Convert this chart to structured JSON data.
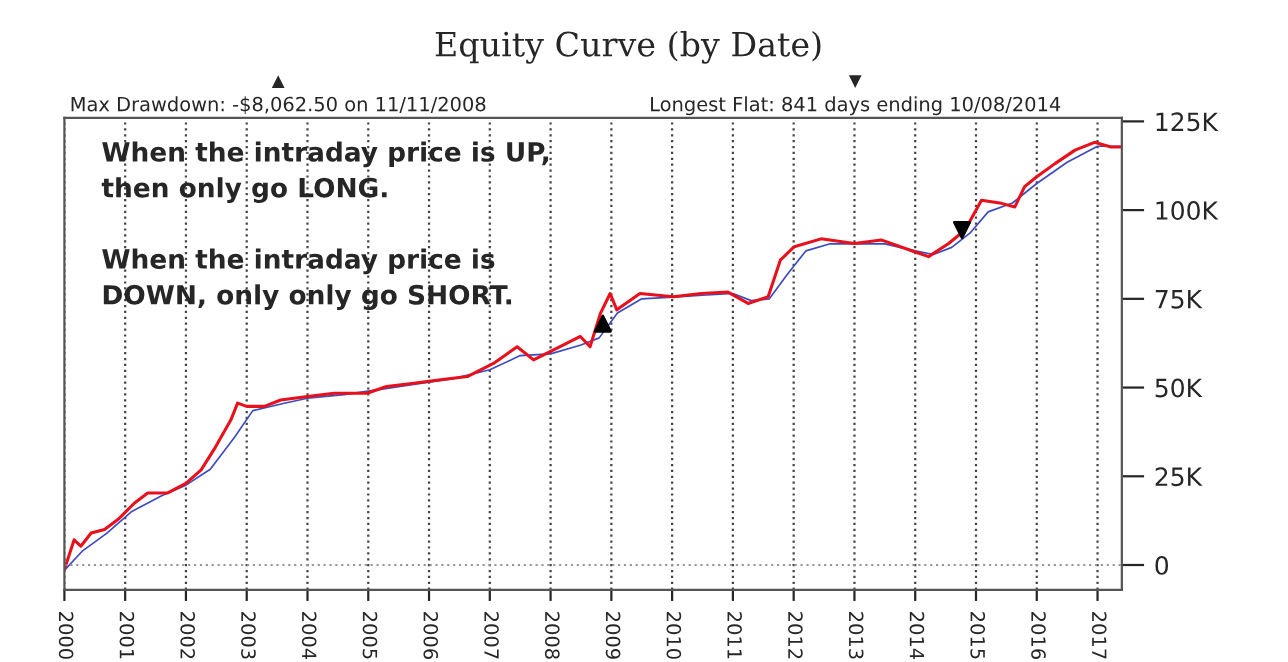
{
  "chart_data": {
    "type": "line",
    "title": "Equity Curve (by Date)",
    "annotations": [
      "▲",
      "Max Drawdown: -$8,062.50 on 11/11/2008",
      "▼",
      "Longest Flat: 841 days ending 10/08/2014",
      "When the intraday price is UP,\nthen only go LONG.\n\nWhen the intraday price is\nDOWN, only only go SHORT."
    ],
    "series": [
      {
        "color": "#3b4cc0",
        "marker": "none",
        "x": [
          2000,
          2000.3,
          2000.7,
          2001.1,
          2001.6,
          2002,
          2002.4,
          2002.8,
          2003.1,
          2003.6,
          2004,
          2004.6,
          2005.2,
          2005.8,
          2006.4,
          2007,
          2007.5,
          2008,
          2008.5,
          2008.8,
          2009.1,
          2009.5,
          2010,
          2010.5,
          2011,
          2011.3,
          2011.6,
          2011.9,
          2012.2,
          2012.6,
          2013,
          2013.5,
          2014,
          2014.3,
          2014.6,
          2014.9,
          2015.2,
          2015.6,
          2016,
          2016.5,
          2017,
          2017.38
        ],
        "values": [
          -1.5,
          4,
          9,
          15,
          19.5,
          22.5,
          27,
          36,
          43.5,
          45.5,
          47,
          48,
          49.5,
          51,
          52.5,
          55,
          59,
          59.5,
          62,
          64,
          71,
          75,
          75.5,
          76,
          76.5,
          74.5,
          75,
          82,
          88.5,
          90.5,
          90.5,
          90.5,
          88.5,
          87.5,
          89.5,
          93.5,
          99.5,
          102,
          107.5,
          113.5,
          118,
          118
        ]
      },
      {
        "color": "#e8101a",
        "marker": "none",
        "x": [
          2000,
          2000.16,
          2000.27,
          2000.44,
          2000.66,
          2000.88,
          2001.15,
          2001.37,
          2001.7,
          2002,
          2002.25,
          2002.46,
          2002.74,
          2002.85,
          2003,
          2003.29,
          2003.56,
          2004,
          2004.44,
          2004.98,
          2005.3,
          2005.75,
          2006.19,
          2006.63,
          2007.06,
          2007.45,
          2007.72,
          2008.05,
          2008.49,
          2008.65,
          2008.82,
          2008.98,
          2009.09,
          2009.47,
          2010.02,
          2010.48,
          2010.92,
          2011.25,
          2011.58,
          2011.78,
          2012.01,
          2012.45,
          2013,
          2013.44,
          2014,
          2014.22,
          2014.55,
          2014.82,
          2015.09,
          2015.42,
          2015.64,
          2015.8,
          2016,
          2016.3,
          2016.63,
          2016.95,
          2017.22,
          2017.38
        ],
        "values": [
          -1.3,
          7.1,
          5.3,
          9,
          10,
          12.8,
          17.4,
          20.3,
          20.3,
          23,
          26.8,
          32.5,
          40.9,
          45.6,
          44.7,
          44.7,
          46.5,
          47.5,
          48.4,
          48.4,
          50.3,
          51.2,
          52.2,
          53.1,
          56.8,
          61.5,
          57.8,
          60.6,
          64.4,
          61.5,
          70.9,
          76.5,
          71.9,
          76.5,
          75.6,
          76.5,
          76.9,
          73.7,
          75.6,
          85.9,
          89.7,
          91.9,
          90.6,
          91.6,
          88.2,
          86.9,
          90.6,
          94.4,
          102.8,
          101.9,
          100.9,
          106.6,
          109.4,
          113.1,
          116.9,
          119.1,
          117.8,
          117.8
        ]
      },
      {
        "type": "scatter",
        "color": "#000000",
        "marker": "triangle",
        "x": [
          2008.86
        ],
        "values": [
          68
        ]
      },
      {
        "type": "scatter",
        "color": "#000000",
        "marker": "triangle-down",
        "x": [
          2014.77
        ],
        "values": [
          94.4
        ]
      }
    ],
    "xlim": [
      2000,
      2017.4
    ],
    "xticks": [
      2000,
      2001,
      2002,
      2003,
      2004,
      2005,
      2006,
      2007,
      2008,
      2009,
      2010,
      2011,
      2012,
      2013,
      2014,
      2015,
      2016,
      2017
    ],
    "ylim": [
      -7,
      126
    ],
    "yticks": [
      0,
      {
        "value": 25,
        "label": "25K"
      },
      {
        "value": 50,
        "label": "50K"
      },
      {
        "value": 75,
        "label": "75K"
      },
      {
        "value": 100,
        "label": "100K"
      },
      {
        "value": 125,
        "label": "125K"
      }
    ],
    "ref_lines": [
      {
        "axis": "y",
        "value": 0,
        "color": "#999999",
        "line_style": "dotted"
      }
    ],
    "grid": "x"
  }
}
